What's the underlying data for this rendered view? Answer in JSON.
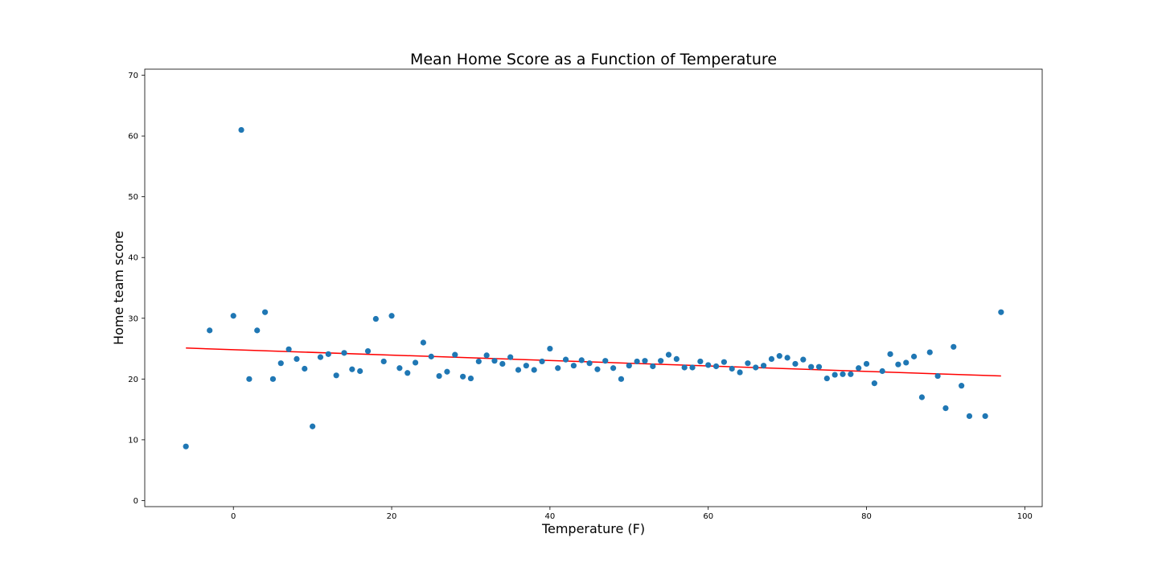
{
  "chart_data": {
    "type": "scatter",
    "title": "Mean Home Score as a Function of Temperature",
    "xlabel": "Temperature (F)",
    "ylabel": "Home team score",
    "xlim": [
      -11.2,
      102.2
    ],
    "ylim": [
      -1,
      71
    ],
    "xticks": [
      0,
      20,
      40,
      60,
      80,
      100
    ],
    "yticks": [
      0,
      10,
      20,
      30,
      40,
      50,
      60,
      70
    ],
    "grid": false,
    "legend": "none",
    "colors": {
      "points": "#1f77b4",
      "trend": "#ff0000",
      "axes": "#000000"
    },
    "series": [
      {
        "kind": "scatter",
        "x": [
          -6,
          -3,
          0,
          1,
          2,
          3,
          4,
          5,
          6,
          7,
          8,
          9,
          10,
          11,
          12,
          13,
          14,
          15,
          16,
          17,
          18,
          19,
          20,
          21,
          22,
          23,
          24,
          25,
          26,
          27,
          28,
          29,
          30,
          31,
          32,
          33,
          34,
          35,
          36,
          37,
          38,
          39,
          40,
          41,
          42,
          43,
          44,
          45,
          46,
          47,
          48,
          49,
          50,
          51,
          52,
          53,
          54,
          55,
          56,
          57,
          58,
          59,
          60,
          61,
          62,
          63,
          64,
          65,
          66,
          67,
          68,
          69,
          70,
          71,
          72,
          73,
          74,
          75,
          76,
          77,
          78,
          79,
          80,
          81,
          82,
          83,
          84,
          85,
          86,
          87,
          88,
          89,
          90,
          91,
          92,
          93,
          95,
          97
        ],
        "y": [
          8.9,
          28.0,
          30.4,
          61.0,
          20.0,
          28.0,
          31.0,
          20.0,
          22.6,
          24.9,
          23.3,
          21.7,
          12.2,
          23.6,
          24.1,
          20.6,
          24.3,
          21.6,
          21.3,
          24.6,
          29.9,
          22.9,
          30.4,
          21.8,
          21.0,
          22.7,
          26.0,
          23.7,
          20.5,
          21.2,
          24.0,
          20.4,
          20.1,
          22.9,
          23.9,
          23.0,
          22.5,
          23.6,
          21.5,
          22.2,
          21.5,
          22.9,
          25.0,
          21.8,
          23.2,
          22.2,
          23.1,
          22.6,
          21.6,
          23.0,
          21.8,
          20.0,
          22.2,
          22.9,
          23.0,
          22.1,
          23.0,
          24.0,
          23.3,
          21.9,
          21.9,
          22.9,
          22.3,
          22.1,
          22.8,
          21.7,
          21.1,
          22.6,
          21.9,
          22.2,
          23.3,
          23.8,
          23.5,
          22.5,
          23.2,
          22.0,
          22.0,
          20.1,
          20.7,
          20.8,
          20.8,
          21.8,
          22.5,
          19.3,
          21.3,
          24.1,
          22.4,
          22.7,
          23.7,
          17.0,
          24.4,
          20.5,
          15.2,
          25.3,
          18.9,
          13.9,
          13.9,
          31.0
        ]
      },
      {
        "kind": "line",
        "x": [
          -6,
          97
        ],
        "y": [
          25.1,
          20.5
        ]
      }
    ]
  }
}
